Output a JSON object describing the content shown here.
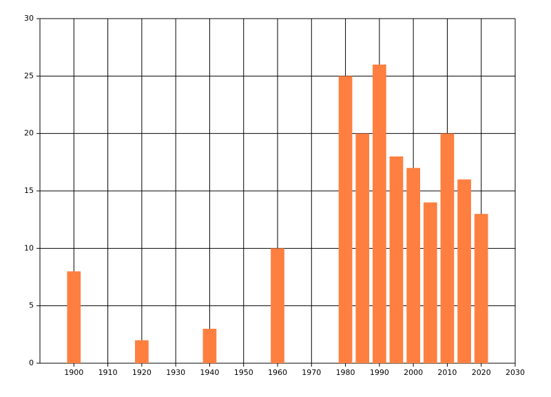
{
  "chart_data": {
    "type": "bar",
    "x": [
      1900,
      1920,
      1940,
      1960,
      1980,
      1985,
      1990,
      1995,
      2000,
      2005,
      2010,
      2015,
      2020
    ],
    "values": [
      8,
      2,
      3,
      10,
      25,
      20,
      26,
      18,
      17,
      14,
      20,
      16,
      13
    ],
    "color": "#ff7f40",
    "xlim": [
      1890,
      2030
    ],
    "xticks": [
      1900,
      1910,
      1920,
      1930,
      1940,
      1950,
      1960,
      1970,
      1980,
      1990,
      2000,
      2010,
      2020,
      2030
    ],
    "ylim": [
      0,
      30
    ],
    "yticks": [
      0,
      5,
      10,
      15,
      20,
      25,
      30
    ],
    "grid": true
  }
}
